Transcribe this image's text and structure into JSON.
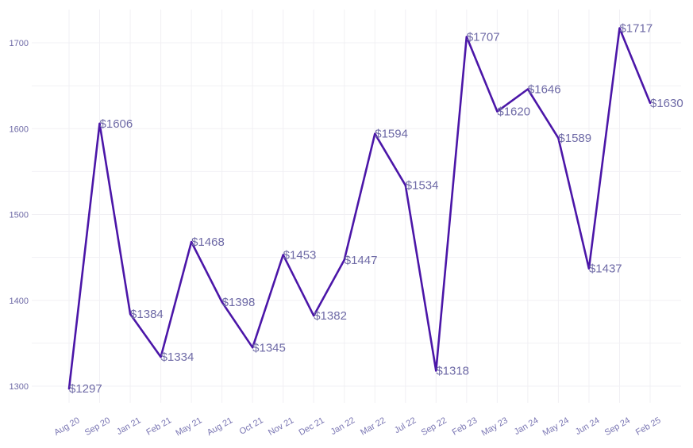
{
  "chart_data": {
    "type": "line",
    "title": "",
    "xlabel": "",
    "ylabel": "",
    "categories": [
      "Aug 20",
      "Sep 20",
      "Jan 21",
      "Feb 21",
      "May 21",
      "Aug 21",
      "Oct 21",
      "Nov 21",
      "Dec 21",
      "Jan 22",
      "Mar 22",
      "Jul 22",
      "Sep 22",
      "Feb 23",
      "May 23",
      "Jan 24",
      "May 24",
      "Jun 24",
      "Sep 24",
      "Feb 25"
    ],
    "values": [
      1297,
      1606,
      1384,
      1334,
      1468,
      1398,
      1345,
      1453,
      1382,
      1447,
      1594,
      1534,
      1318,
      1707,
      1620,
      1646,
      1589,
      1437,
      1717,
      1630
    ],
    "data_labels": [
      "$1297",
      "$1606",
      "$1384",
      "$1334",
      "$1468",
      "$1398",
      "$1345",
      "$1453",
      "$1382",
      "$1447",
      "$1594",
      "$1534",
      "$1318",
      "$1707",
      "$1620",
      "$1646",
      "$1589",
      "$1437",
      "$1717",
      "$1630"
    ],
    "y_ticks": [
      1300,
      1400,
      1500,
      1600,
      1700
    ],
    "ylim": [
      1280,
      1740
    ],
    "grid": true,
    "legend": "none",
    "series_color": "#4b16a8"
  }
}
